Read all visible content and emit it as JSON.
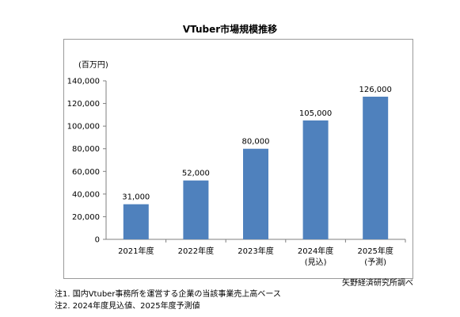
{
  "chart_data": {
    "type": "bar",
    "title": "VTuber市場規模推移",
    "unit_label": "(百万円)",
    "categories": [
      [
        "2021年度"
      ],
      [
        "2022年度"
      ],
      [
        "2023年度"
      ],
      [
        "2024年度",
        "(見込)"
      ],
      [
        "2025年度",
        "(予測)"
      ]
    ],
    "values": [
      31000,
      52000,
      80000,
      105000,
      126000
    ],
    "data_labels": [
      "31,000",
      "52,000",
      "80,000",
      "105,000",
      "126,000"
    ],
    "ylim": [
      0,
      140000
    ],
    "yticks": [
      0,
      20000,
      40000,
      60000,
      80000,
      100000,
      120000,
      140000
    ],
    "ytick_labels": [
      "0",
      "20,000",
      "40,000",
      "60,000",
      "80,000",
      "100,000",
      "120,000",
      "140,000"
    ],
    "bar_color": "#4f81bd",
    "grid": false
  },
  "source": "矢野経済研究所調べ",
  "notes": [
    "注1. 国内Vtuber事務所を運営する企業の当該事業売上高ベース",
    "注2. 2024年度見込値、2025年度予測値"
  ]
}
